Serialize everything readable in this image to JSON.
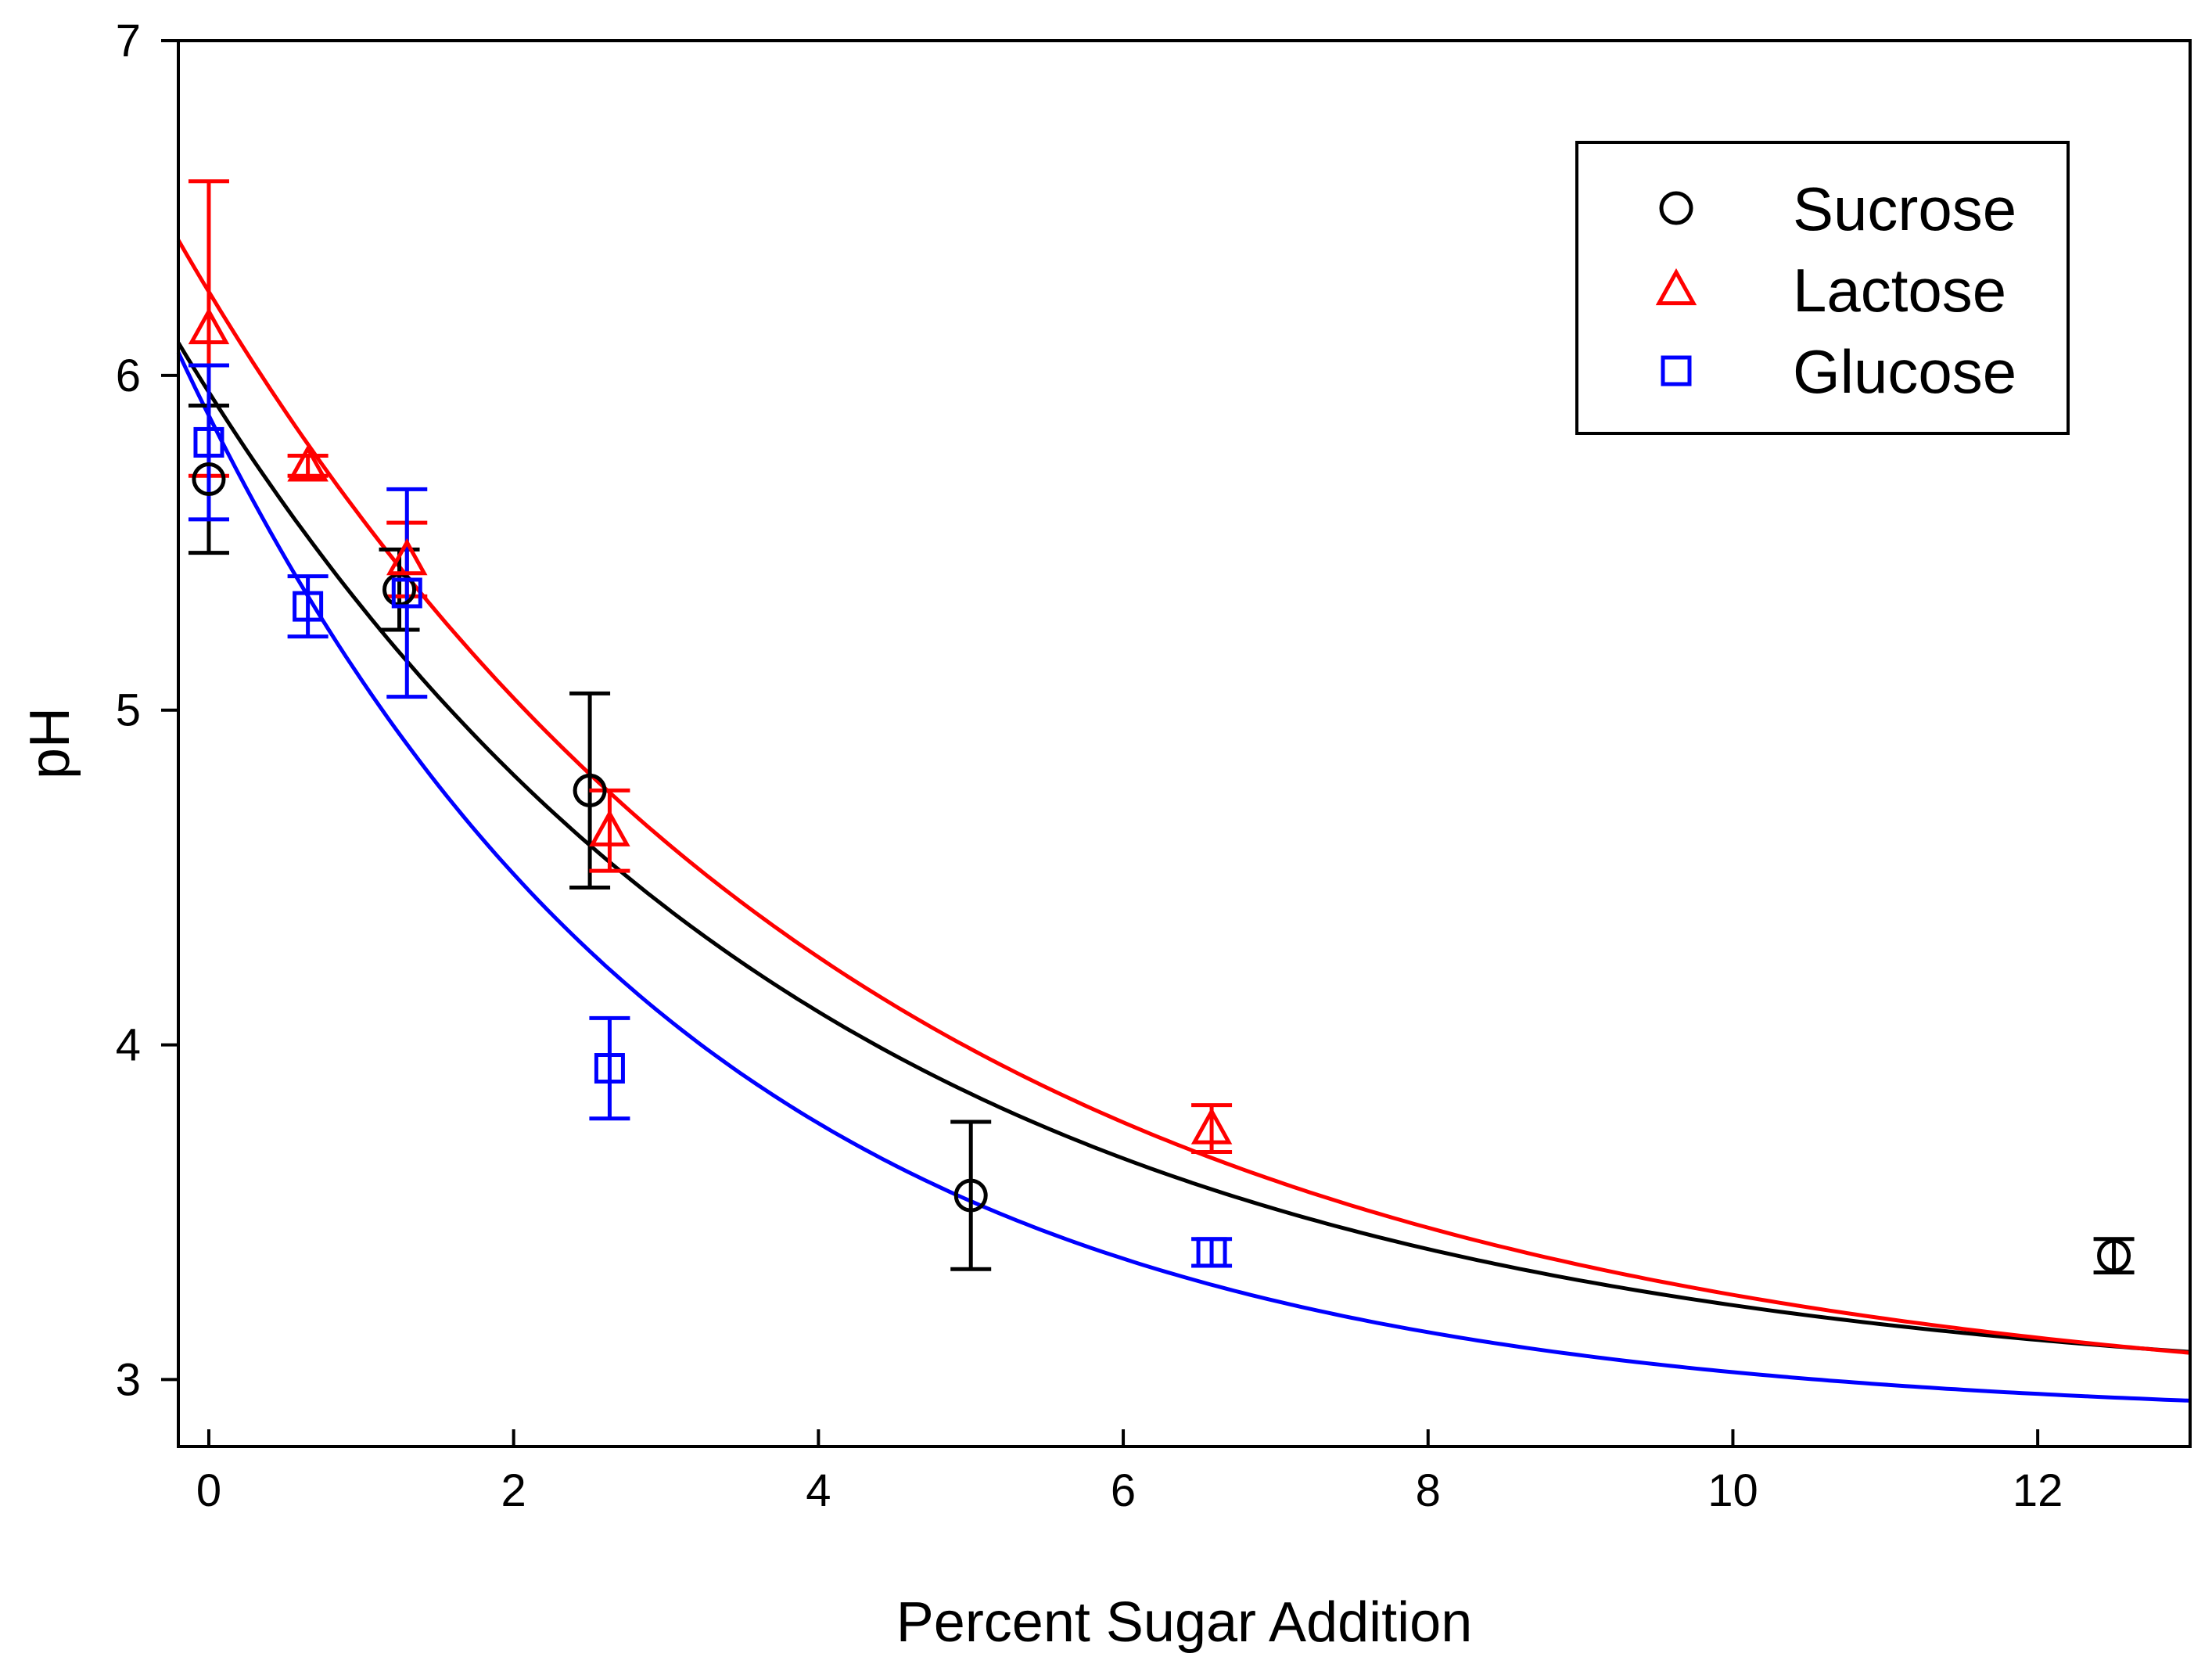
{
  "chart_data": {
    "type": "scatter",
    "title": "",
    "xlabel": "Percent Sugar Addition",
    "ylabel": "pH",
    "xlim": [
      -0.2,
      13
    ],
    "ylim": [
      2.8,
      7
    ],
    "xticks": [
      0,
      2,
      4,
      6,
      8,
      10,
      12
    ],
    "yticks": [
      3,
      4,
      5,
      6,
      7
    ],
    "x_tick_labels": [
      "0",
      "2",
      "4",
      "6",
      "8",
      "10",
      "12"
    ],
    "y_tick_labels": [
      "3",
      "4",
      "5",
      "6",
      "7"
    ],
    "grid": false,
    "legend_position": "top-right",
    "series": [
      {
        "name": "Sucrose",
        "color": "#000000",
        "marker": "circle",
        "x": [
          0,
          1.25,
          2.5,
          5,
          12.5
        ],
        "y": [
          5.69,
          5.36,
          4.76,
          3.55,
          3.37
        ],
        "err": [
          0.22,
          0.12,
          0.29,
          0.22,
          0.05
        ],
        "fit": {
          "y0": 2.95,
          "a": 3.0,
          "b": 0.24
        }
      },
      {
        "name": "Lactose",
        "color": "#ff0000",
        "marker": "triangle",
        "x": [
          0,
          0.65,
          1.3,
          2.63,
          6.58
        ],
        "y": [
          6.14,
          5.73,
          5.45,
          4.64,
          3.75
        ],
        "err": [
          0.44,
          0.03,
          0.11,
          0.12,
          0.07
        ],
        "fit": {
          "y0": 2.9,
          "a": 3.35,
          "b": 0.225
        }
      },
      {
        "name": "Glucose",
        "color": "#0000ff",
        "marker": "square",
        "x": [
          0,
          0.65,
          1.3,
          2.63,
          6.58
        ],
        "y": [
          5.8,
          5.31,
          5.35,
          3.93,
          3.38
        ],
        "err": [
          0.23,
          0.09,
          0.31,
          0.15,
          0.04
        ],
        "fit": {
          "y0": 2.88,
          "a": 3.0,
          "b": 0.305
        }
      }
    ]
  }
}
